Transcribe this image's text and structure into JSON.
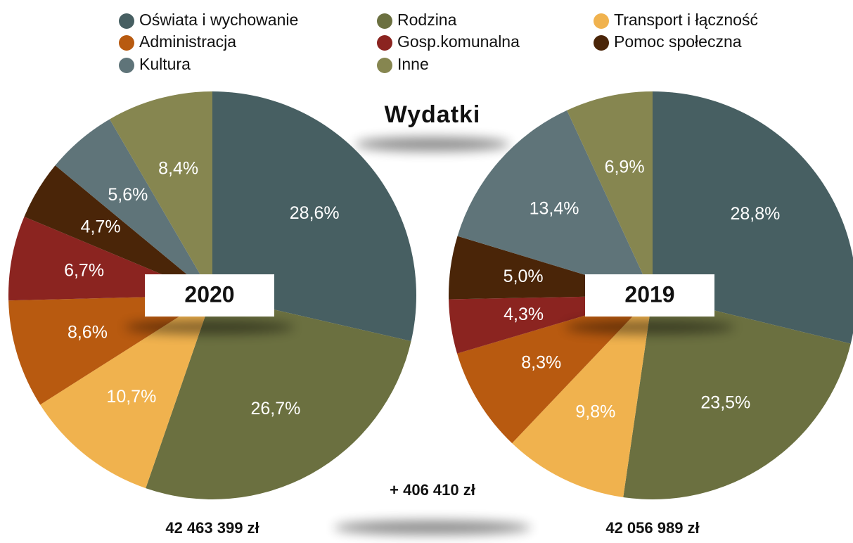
{
  "title": "Wydatki",
  "difference": "+ 406 410 zł",
  "chart_data": [
    {
      "type": "pie",
      "title": "2020",
      "total": "42 463 399 zł",
      "categories": [
        "Oświata i wychowanie",
        "Rodzina",
        "Transport i łączność",
        "Administracja",
        "Gosp.komunalna",
        "Pomoc społeczna",
        "Kultura",
        "Inne"
      ],
      "colors": [
        "#475f62",
        "#6b7040",
        "#f0b24e",
        "#b85a10",
        "#8b2420",
        "#4a2508",
        "#5f7479",
        "#868650"
      ],
      "values": [
        28.6,
        26.7,
        10.7,
        8.6,
        6.7,
        4.7,
        5.6,
        8.4
      ],
      "value_labels": [
        "28,6%",
        "26,7%",
        "10,7%",
        "8,6%",
        "6,7%",
        "4,7%",
        "5,6%",
        "8,4%"
      ]
    },
    {
      "type": "pie",
      "title": "2019",
      "total": "42 056 989 zł",
      "categories": [
        "Oświata i wychowanie",
        "Rodzina",
        "Transport i łączność",
        "Administracja",
        "Gosp.komunalna",
        "Pomoc społeczna",
        "Kultura",
        "Inne"
      ],
      "colors": [
        "#475f62",
        "#6b7040",
        "#f0b24e",
        "#b85a10",
        "#8b2420",
        "#4a2508",
        "#5f7479",
        "#868650"
      ],
      "values": [
        28.8,
        23.5,
        9.8,
        8.3,
        4.3,
        5.0,
        13.4,
        6.9
      ],
      "value_labels": [
        "28,8%",
        "23,5%",
        "9,8%",
        "8,3%",
        "4,3%",
        "5,0%",
        "13,4%",
        "6,9%"
      ]
    }
  ]
}
